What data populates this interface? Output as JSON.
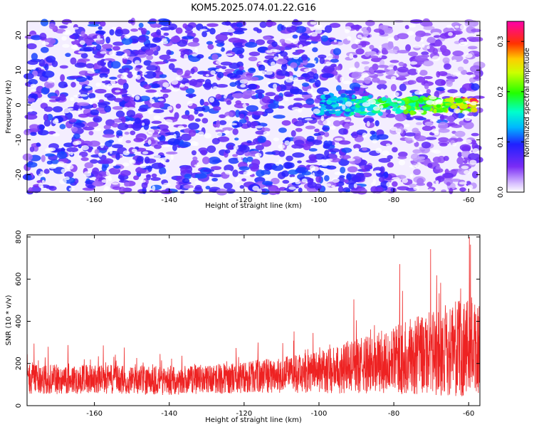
{
  "title": "KOM5.2025.074.01.22.G16",
  "chart_data": [
    {
      "type": "heatmap",
      "xlabel": "Height of straight line (km)",
      "ylabel": "Frequency (Hz)",
      "xlim": [
        -178,
        -57
      ],
      "ylim": [
        -25,
        24
      ],
      "x_ticks": [
        -160,
        -140,
        -120,
        -100,
        -80,
        -60
      ],
      "y_ticks": [
        -20,
        -10,
        0,
        10,
        20
      ],
      "colorbar": {
        "label": "Normalized spectral amplitude",
        "range": [
          0,
          0.34
        ],
        "ticks": [
          0.0,
          0.1,
          0.2,
          0.3
        ]
      },
      "features": [
        {
          "x_range": [
            -100,
            -58
          ],
          "frequency_center": 2,
          "peak_amplitude": 0.3
        }
      ]
    },
    {
      "type": "line",
      "xlabel": "Height of straight line (km)",
      "ylabel": "SNR (10 * v/v)",
      "xlim": [
        -178,
        -57
      ],
      "ylim": [
        0,
        810
      ],
      "x_ticks": [
        -160,
        -140,
        -120,
        -100,
        -80,
        -60
      ],
      "y_ticks": [
        0,
        200,
        400,
        600,
        800
      ],
      "series": [
        {
          "color": "#ee2222",
          "x": [
            -178,
            -170,
            -160,
            -150,
            -140,
            -130,
            -120,
            -110,
            -100,
            -90,
            -80,
            -70,
            -60,
            -57
          ],
          "mean": [
            125,
            125,
            125,
            122,
            120,
            125,
            135,
            145,
            160,
            185,
            215,
            250,
            280,
            280
          ],
          "spread": [
            70,
            70,
            70,
            70,
            70,
            70,
            75,
            85,
            100,
            130,
            160,
            200,
            240,
            240
          ]
        }
      ]
    }
  ]
}
